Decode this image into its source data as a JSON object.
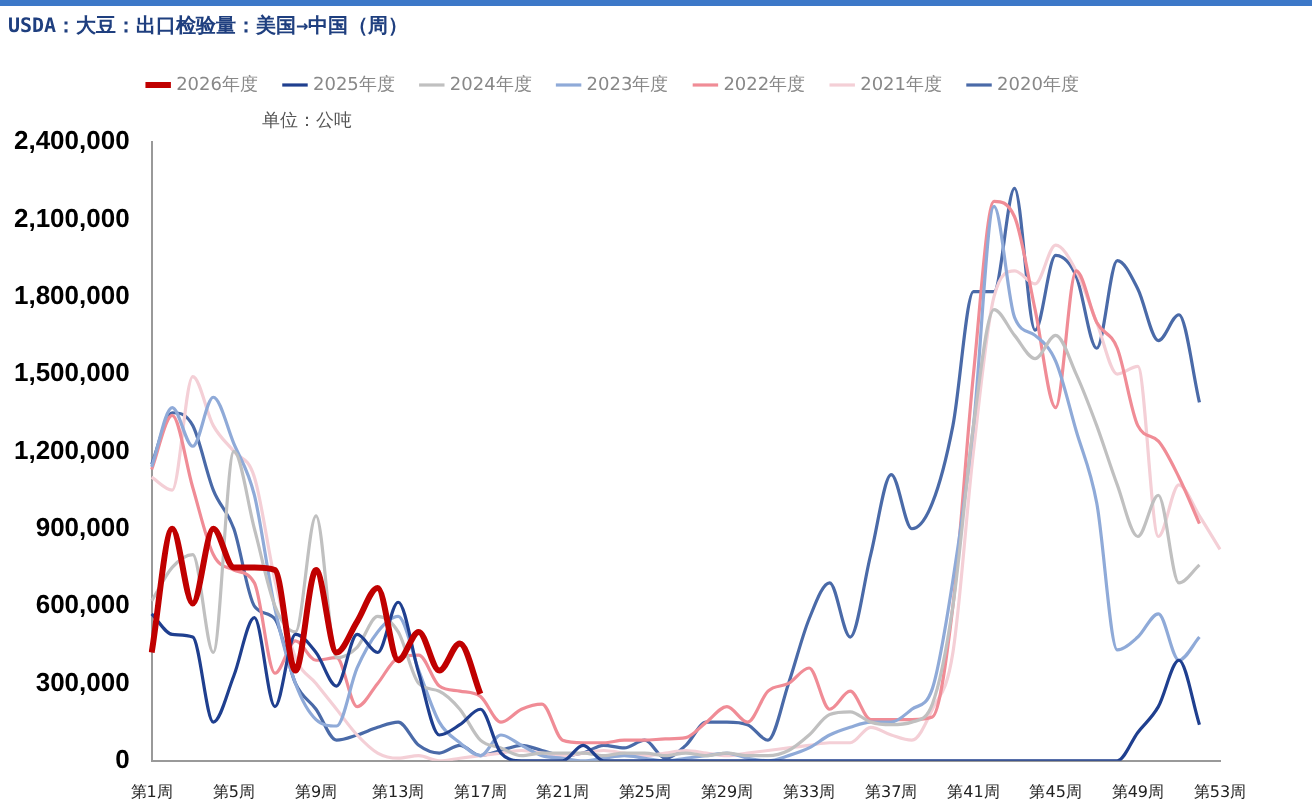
{
  "chart_data": {
    "type": "line",
    "title": "USDA：大豆：出口检验量：美国→中国（周）",
    "annotations": [
      "单位：公吨"
    ],
    "categories": [
      "第1周",
      null,
      null,
      null,
      "第5周",
      null,
      null,
      null,
      "第9周",
      null,
      null,
      null,
      "第13周",
      null,
      null,
      null,
      "第17周",
      null,
      null,
      null,
      "第21周",
      null,
      null,
      null,
      "第25周",
      null,
      null,
      null,
      "第29周",
      null,
      null,
      null,
      "第33周",
      null,
      null,
      null,
      "第37周",
      null,
      null,
      null,
      "第41周",
      null,
      null,
      null,
      "第45周",
      null,
      null,
      null,
      "第49周",
      null,
      null,
      null,
      "第53周"
    ],
    "ylim": [
      0,
      2400000
    ],
    "yticks": [
      {
        "value": 0,
        "label": "0"
      },
      {
        "value": 300000,
        "label": "300,000"
      },
      {
        "value": 600000,
        "label": "600,000"
      },
      {
        "value": 900000,
        "label": "900,000"
      },
      {
        "value": 1200000,
        "label": "1,200,000"
      },
      {
        "value": 1500000,
        "label": "1,500,000"
      },
      {
        "value": 1800000,
        "label": "1,800,000"
      },
      {
        "value": 2100000,
        "label": "2,100,000"
      },
      {
        "value": 2400000,
        "label": "2,400,000"
      }
    ],
    "grid": false,
    "legend": "top",
    "marker": "none",
    "line_style": "solid",
    "series": [
      {
        "name": "2026年度",
        "color": "#c00000",
        "values": [
          420000,
          900000,
          610000,
          900000,
          750000,
          750000,
          740000,
          350000,
          740000,
          420000,
          540000,
          670000,
          390000,
          500000,
          350000,
          455000,
          260000,
          null,
          null,
          null,
          null,
          null,
          null,
          null,
          null,
          null,
          null,
          null,
          null,
          null,
          null,
          null,
          null,
          null,
          null,
          null,
          null,
          null,
          null,
          null,
          null,
          null,
          null,
          null,
          null,
          null,
          null,
          null,
          null,
          null,
          null,
          null,
          null
        ]
      },
      {
        "name": "2025年度",
        "color": "#1f3f8f",
        "values": [
          570000,
          490000,
          480000,
          150000,
          330000,
          555000,
          210000,
          490000,
          420000,
          290000,
          490000,
          420000,
          615000,
          340000,
          100000,
          140000,
          200000,
          30000,
          0,
          0,
          0,
          60000,
          0,
          0,
          0,
          0,
          0,
          0,
          0,
          0,
          0,
          0,
          0,
          0,
          0,
          0,
          0,
          0,
          0,
          0,
          0,
          0,
          0,
          0,
          0,
          0,
          0,
          0,
          110000,
          210000,
          390000,
          140000,
          null
        ]
      },
      {
        "name": "2024年度",
        "color": "#c0c0c0",
        "values": [
          620000,
          750000,
          800000,
          420000,
          1200000,
          900000,
          600000,
          500000,
          950000,
          400000,
          440000,
          560000,
          500000,
          300000,
          270000,
          200000,
          80000,
          50000,
          20000,
          30000,
          30000,
          30000,
          20000,
          30000,
          30000,
          20000,
          30000,
          20000,
          30000,
          20000,
          20000,
          40000,
          100000,
          180000,
          190000,
          150000,
          140000,
          150000,
          220000,
          600000,
          1300000,
          1750000,
          1650000,
          1560000,
          1650000,
          1500000,
          1300000,
          1070000,
          870000,
          1030000,
          690000,
          760000,
          null
        ]
      },
      {
        "name": "2023年度",
        "color": "#8faad8",
        "values": [
          1140000,
          1370000,
          1220000,
          1410000,
          1230000,
          1030000,
          590000,
          300000,
          160000,
          135000,
          360000,
          500000,
          560000,
          350000,
          150000,
          70000,
          20000,
          100000,
          60000,
          20000,
          10000,
          0,
          10000,
          20000,
          10000,
          0,
          10000,
          20000,
          30000,
          10000,
          0,
          20000,
          50000,
          100000,
          130000,
          150000,
          150000,
          200000,
          280000,
          700000,
          1300000,
          2150000,
          1720000,
          1650000,
          1550000,
          1280000,
          1000000,
          430000,
          480000,
          570000,
          390000,
          480000,
          null
        ]
      },
      {
        "name": "2022年度",
        "color": "#f08c96",
        "values": [
          1130000,
          1340000,
          1060000,
          800000,
          740000,
          690000,
          340000,
          465000,
          390000,
          400000,
          210000,
          300000,
          400000,
          410000,
          290000,
          270000,
          250000,
          150000,
          200000,
          220000,
          80000,
          70000,
          70000,
          80000,
          80000,
          85000,
          90000,
          150000,
          210000,
          150000,
          270000,
          300000,
          360000,
          200000,
          270000,
          160000,
          160000,
          160000,
          170000,
          600000,
          1500000,
          2170000,
          2110000,
          1750000,
          1370000,
          1900000,
          1700000,
          1600000,
          1300000,
          1240000,
          1100000,
          920000,
          null
        ]
      },
      {
        "name": "2021年度",
        "color": "#f4cfd6",
        "values": [
          1100000,
          1050000,
          1490000,
          1300000,
          1200000,
          1100000,
          700000,
          400000,
          300000,
          200000,
          100000,
          30000,
          10000,
          20000,
          0,
          10000,
          20000,
          30000,
          40000,
          30000,
          20000,
          30000,
          40000,
          30000,
          20000,
          30000,
          40000,
          30000,
          20000,
          30000,
          40000,
          50000,
          60000,
          70000,
          70000,
          130000,
          100000,
          80000,
          200000,
          420000,
          1200000,
          1800000,
          1900000,
          1850000,
          2000000,
          1900000,
          1700000,
          1500000,
          1530000,
          870000,
          1070000,
          950000,
          820000
        ]
      },
      {
        "name": "2020年度",
        "color": "#4a6aa8",
        "values": [
          1150000,
          1350000,
          1300000,
          1050000,
          900000,
          600000,
          550000,
          300000,
          200000,
          80000,
          100000,
          130000,
          150000,
          60000,
          30000,
          60000,
          20000,
          40000,
          60000,
          40000,
          20000,
          30000,
          60000,
          50000,
          80000,
          10000,
          60000,
          150000,
          150000,
          140000,
          80000,
          300000,
          550000,
          690000,
          480000,
          800000,
          1110000,
          900000,
          1000000,
          1300000,
          1820000,
          1820000,
          2220000,
          1670000,
          1960000,
          1880000,
          1600000,
          1940000,
          1830000,
          1630000,
          1730000,
          1390000,
          null
        ]
      }
    ]
  }
}
